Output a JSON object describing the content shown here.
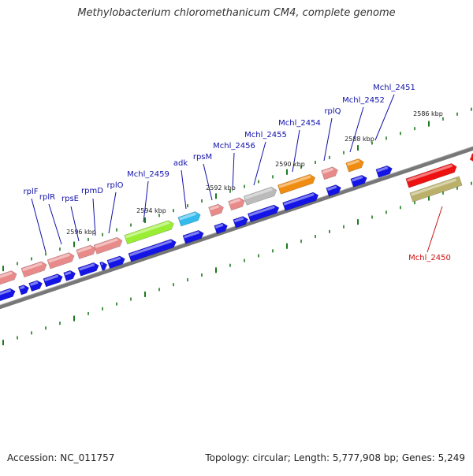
{
  "header": {
    "title": "Methylobacterium chloromethanicum CM4, complete genome"
  },
  "footer": {
    "accession": "Accession: NC_011757",
    "summary": "Topology: circular; Length: 5,777,908 bp; Genes: 5,249"
  },
  "colors": {
    "backbone": "#777777",
    "tick": "#1e7a1e",
    "label_blue": "#1010aa",
    "label_red": "#cc1111",
    "cds_blue": "#1414e6",
    "ribosomal_pink": "#e98a8a",
    "adk_cyan": "#33bbee",
    "lightgreen": "#99ee33",
    "gray": "#bbbbbb",
    "orange": "#f08c10",
    "red": "#ee1111",
    "khaki": "#bbb069"
  },
  "scale": {
    "kbp_labels": [
      "2586 kbp",
      "2588 kbp",
      "2590 kbp",
      "2592 kbp",
      "2594 kbp",
      "2596 kbp"
    ]
  },
  "genes": [
    {
      "name": "rplF"
    },
    {
      "name": "rplR"
    },
    {
      "name": "rpsE"
    },
    {
      "name": "rpmD"
    },
    {
      "name": "rplO"
    },
    {
      "name": "Mchl_2459"
    },
    {
      "name": "adk"
    },
    {
      "name": "rpsM"
    },
    {
      "name": "Mchl_2456"
    },
    {
      "name": "Mchl_2455"
    },
    {
      "name": "Mchl_2454"
    },
    {
      "name": "rplQ"
    },
    {
      "name": "Mchl_2452"
    },
    {
      "name": "Mchl_2451"
    },
    {
      "name": "Mchl_2450"
    }
  ]
}
